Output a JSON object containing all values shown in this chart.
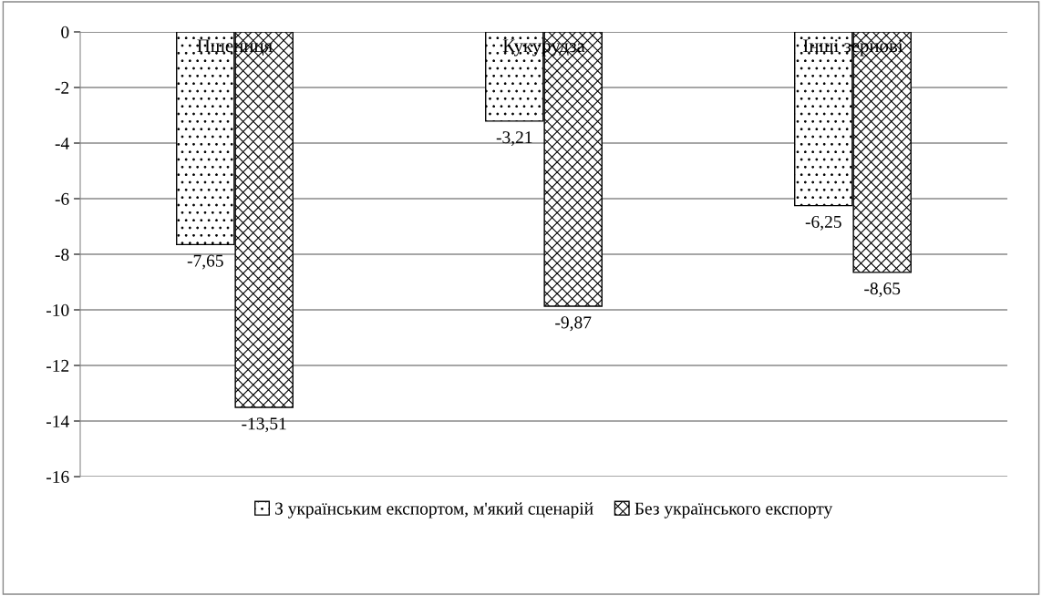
{
  "chart_data": {
    "type": "bar",
    "categories": [
      "Пшениця",
      "Кукурудза",
      "Інші зернові"
    ],
    "series": [
      {
        "name": "З українським експортом, м'який сценарій",
        "color": "#000000",
        "values": [
          -7.65,
          -3.21,
          -6.25
        ],
        "value_labels": [
          "-7,65",
          "-3,21",
          "-6,25"
        ]
      },
      {
        "name": "Без українського експорту",
        "color": "#000000",
        "values": [
          -13.51,
          -9.87,
          -8.65
        ],
        "value_labels": [
          "-13,51",
          "-9,87",
          "-8,65"
        ]
      }
    ],
    "ylim": [
      -16,
      0
    ],
    "yticks": [
      -16,
      -14,
      -12,
      -10,
      -8,
      -6,
      -4,
      -2,
      0
    ],
    "grid": "y",
    "legend": "bottom"
  }
}
